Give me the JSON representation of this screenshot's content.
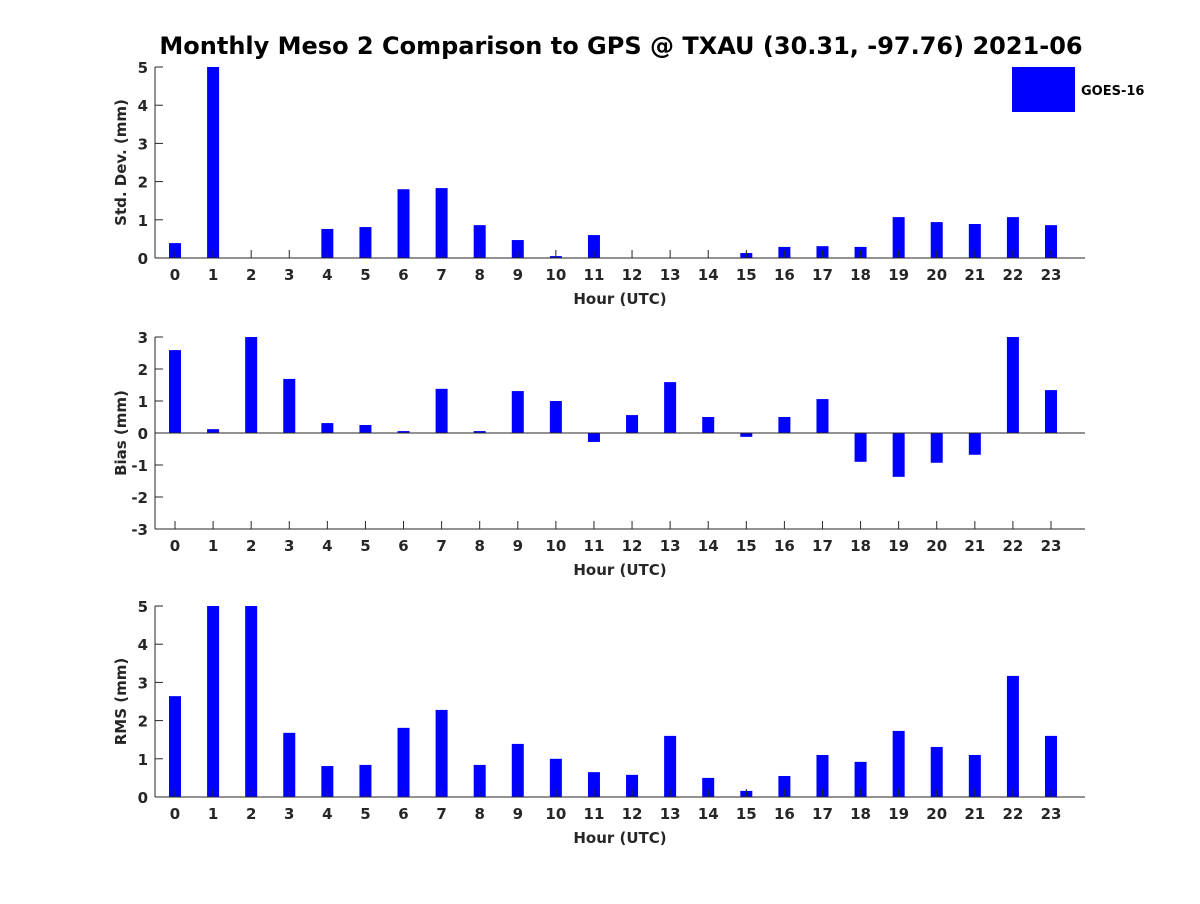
{
  "chart_data": {
    "title": "Monthly Meso 2 Comparison to GPS @ TXAU (30.31, -97.76) 2021-06",
    "legend": {
      "label": "GOES-16",
      "color": "#0000ff",
      "placement": "top-right"
    },
    "charts": [
      {
        "type": "bar",
        "ylabel": "Std. Dev. (mm)",
        "xlabel": "Hour (UTC)",
        "ylim": [
          0,
          5
        ],
        "yticks": [
          0,
          1,
          2,
          3,
          4,
          5
        ],
        "categories": [
          0,
          1,
          2,
          3,
          4,
          5,
          6,
          7,
          8,
          9,
          10,
          11,
          12,
          13,
          14,
          15,
          16,
          17,
          18,
          19,
          20,
          21,
          22,
          23
        ],
        "values": [
          0.39,
          5.0,
          0,
          0,
          0.76,
          0.81,
          1.8,
          1.83,
          0.86,
          0.47,
          0.05,
          0.6,
          0,
          0,
          0,
          0.13,
          0.29,
          0.31,
          0.29,
          1.07,
          0.94,
          0.89,
          1.07,
          0.86
        ]
      },
      {
        "type": "bar",
        "ylabel": "Bias (mm)",
        "xlabel": "Hour (UTC)",
        "ylim": [
          -3,
          3
        ],
        "yticks": [
          -3,
          -2,
          -1,
          0,
          1,
          2,
          3
        ],
        "categories": [
          0,
          1,
          2,
          3,
          4,
          5,
          6,
          7,
          8,
          9,
          10,
          11,
          12,
          13,
          14,
          15,
          16,
          17,
          18,
          19,
          20,
          21,
          22,
          23
        ],
        "values": [
          2.59,
          0.12,
          3.0,
          1.69,
          0.31,
          0.25,
          0.06,
          1.38,
          0.06,
          1.31,
          1.0,
          -0.28,
          0.56,
          1.59,
          0.5,
          -0.12,
          0.5,
          1.06,
          -0.9,
          -1.37,
          -0.93,
          -0.68,
          3.0,
          1.34
        ]
      },
      {
        "type": "bar",
        "ylabel": "RMS (mm)",
        "xlabel": "Hour (UTC)",
        "ylim": [
          0,
          5
        ],
        "yticks": [
          0,
          1,
          2,
          3,
          4,
          5
        ],
        "categories": [
          0,
          1,
          2,
          3,
          4,
          5,
          6,
          7,
          8,
          9,
          10,
          11,
          12,
          13,
          14,
          15,
          16,
          17,
          18,
          19,
          20,
          21,
          22,
          23
        ],
        "values": [
          2.64,
          5.0,
          5.0,
          1.68,
          0.81,
          0.84,
          1.81,
          2.28,
          0.84,
          1.39,
          1.0,
          0.65,
          0.58,
          1.6,
          0.5,
          0.16,
          0.55,
          1.1,
          0.92,
          1.73,
          1.31,
          1.1,
          3.17,
          1.6
        ]
      }
    ]
  }
}
